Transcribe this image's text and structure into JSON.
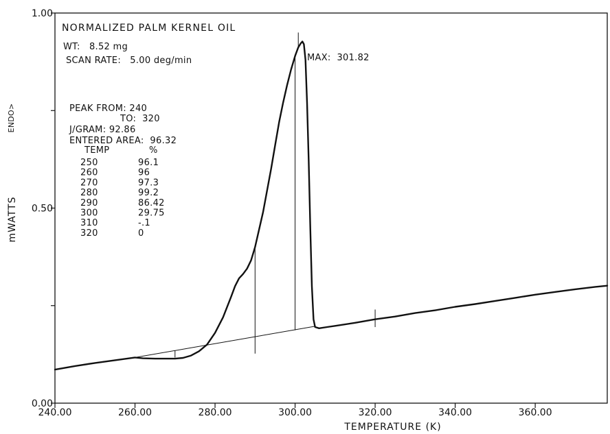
{
  "chart_data": {
    "type": "line",
    "title": "NORMALIZED PALM KERNEL OIL",
    "xlabel": "TEMPERATURE (K)",
    "ylabel": "mWATTS",
    "ylabel_secondary": "ENDO>",
    "xlim": [
      240,
      378
    ],
    "ylim": [
      0,
      1.0
    ],
    "x_ticks": [
      240,
      260,
      280,
      300,
      320,
      340,
      360
    ],
    "x_tick_labels": [
      "240.00",
      "260.00",
      "280.00",
      "300.00",
      "320.00",
      "340.00",
      "360.00"
    ],
    "y_ticks": [
      0,
      0.5,
      1.0
    ],
    "y_tick_labels": [
      "0.00",
      "0.50",
      "1.00"
    ],
    "y_minor_ticks": [
      0.25,
      0.75
    ],
    "info": {
      "weight": "WT:   8.52 mg",
      "scan_rate": "SCAN RATE:   5.00 deg/min",
      "max": "MAX:  301.82",
      "peak_from": "PEAK FROM: 240",
      "peak_to": "TO:  320",
      "j_gram": "J/GRAM: 92.86",
      "entered_area": "ENTERED AREA:  96.32",
      "temp_header": "TEMP",
      "pct_header": "%"
    },
    "table": [
      {
        "temp": "250",
        "pct": "96.1"
      },
      {
        "temp": "260",
        "pct": "96"
      },
      {
        "temp": "270",
        "pct": "97.3"
      },
      {
        "temp": "280",
        "pct": "99.2"
      },
      {
        "temp": "290",
        "pct": "86.42"
      },
      {
        "temp": "300",
        "pct": "29.75"
      },
      {
        "temp": "310",
        "pct": "-.1"
      },
      {
        "temp": "320",
        "pct": "0"
      }
    ],
    "series": [
      {
        "x": [
          240,
          245,
          250,
          255,
          260,
          262,
          265,
          268,
          270,
          272,
          274,
          276,
          278,
          280,
          282,
          284,
          285,
          286,
          287,
          288,
          289,
          290,
          292,
          294,
          295,
          296,
          297,
          298,
          299,
          300,
          300.8,
          301.4,
          301.82,
          302.2,
          302.6,
          303,
          303.4,
          303.8,
          304.2,
          304.6,
          305,
          306,
          308,
          310,
          315,
          320,
          325,
          330,
          335,
          340,
          345,
          350,
          355,
          360,
          365,
          370,
          375,
          378
        ],
        "y": [
          0.086,
          0.095,
          0.103,
          0.11,
          0.117,
          0.115,
          0.114,
          0.114,
          0.114,
          0.116,
          0.122,
          0.133,
          0.15,
          0.18,
          0.22,
          0.272,
          0.3,
          0.32,
          0.331,
          0.345,
          0.366,
          0.4,
          0.49,
          0.6,
          0.66,
          0.72,
          0.77,
          0.815,
          0.855,
          0.89,
          0.912,
          0.922,
          0.927,
          0.92,
          0.88,
          0.77,
          0.62,
          0.45,
          0.3,
          0.215,
          0.195,
          0.192,
          0.195,
          0.198,
          0.206,
          0.215,
          0.222,
          0.231,
          0.238,
          0.247,
          0.254,
          0.262,
          0.27,
          0.278,
          0.285,
          0.292,
          0.298,
          0.301
        ]
      }
    ],
    "baseline": {
      "x": [
        260,
        305
      ],
      "y": [
        0.117,
        0.197
      ]
    },
    "partial_area_lines": [
      {
        "x": 270,
        "y_bottom": 0.117,
        "y_top": 0.135
      },
      {
        "x": 290,
        "y_bottom": 0.127,
        "y_top": 0.4
      },
      {
        "x": 300,
        "y_bottom": 0.187,
        "y_top": 0.89
      }
    ],
    "markers": [
      {
        "x": 300.8,
        "y_bottom": 0.91,
        "y_top": 0.95
      },
      {
        "x": 320,
        "y_bottom": 0.195,
        "y_top": 0.24
      }
    ]
  }
}
